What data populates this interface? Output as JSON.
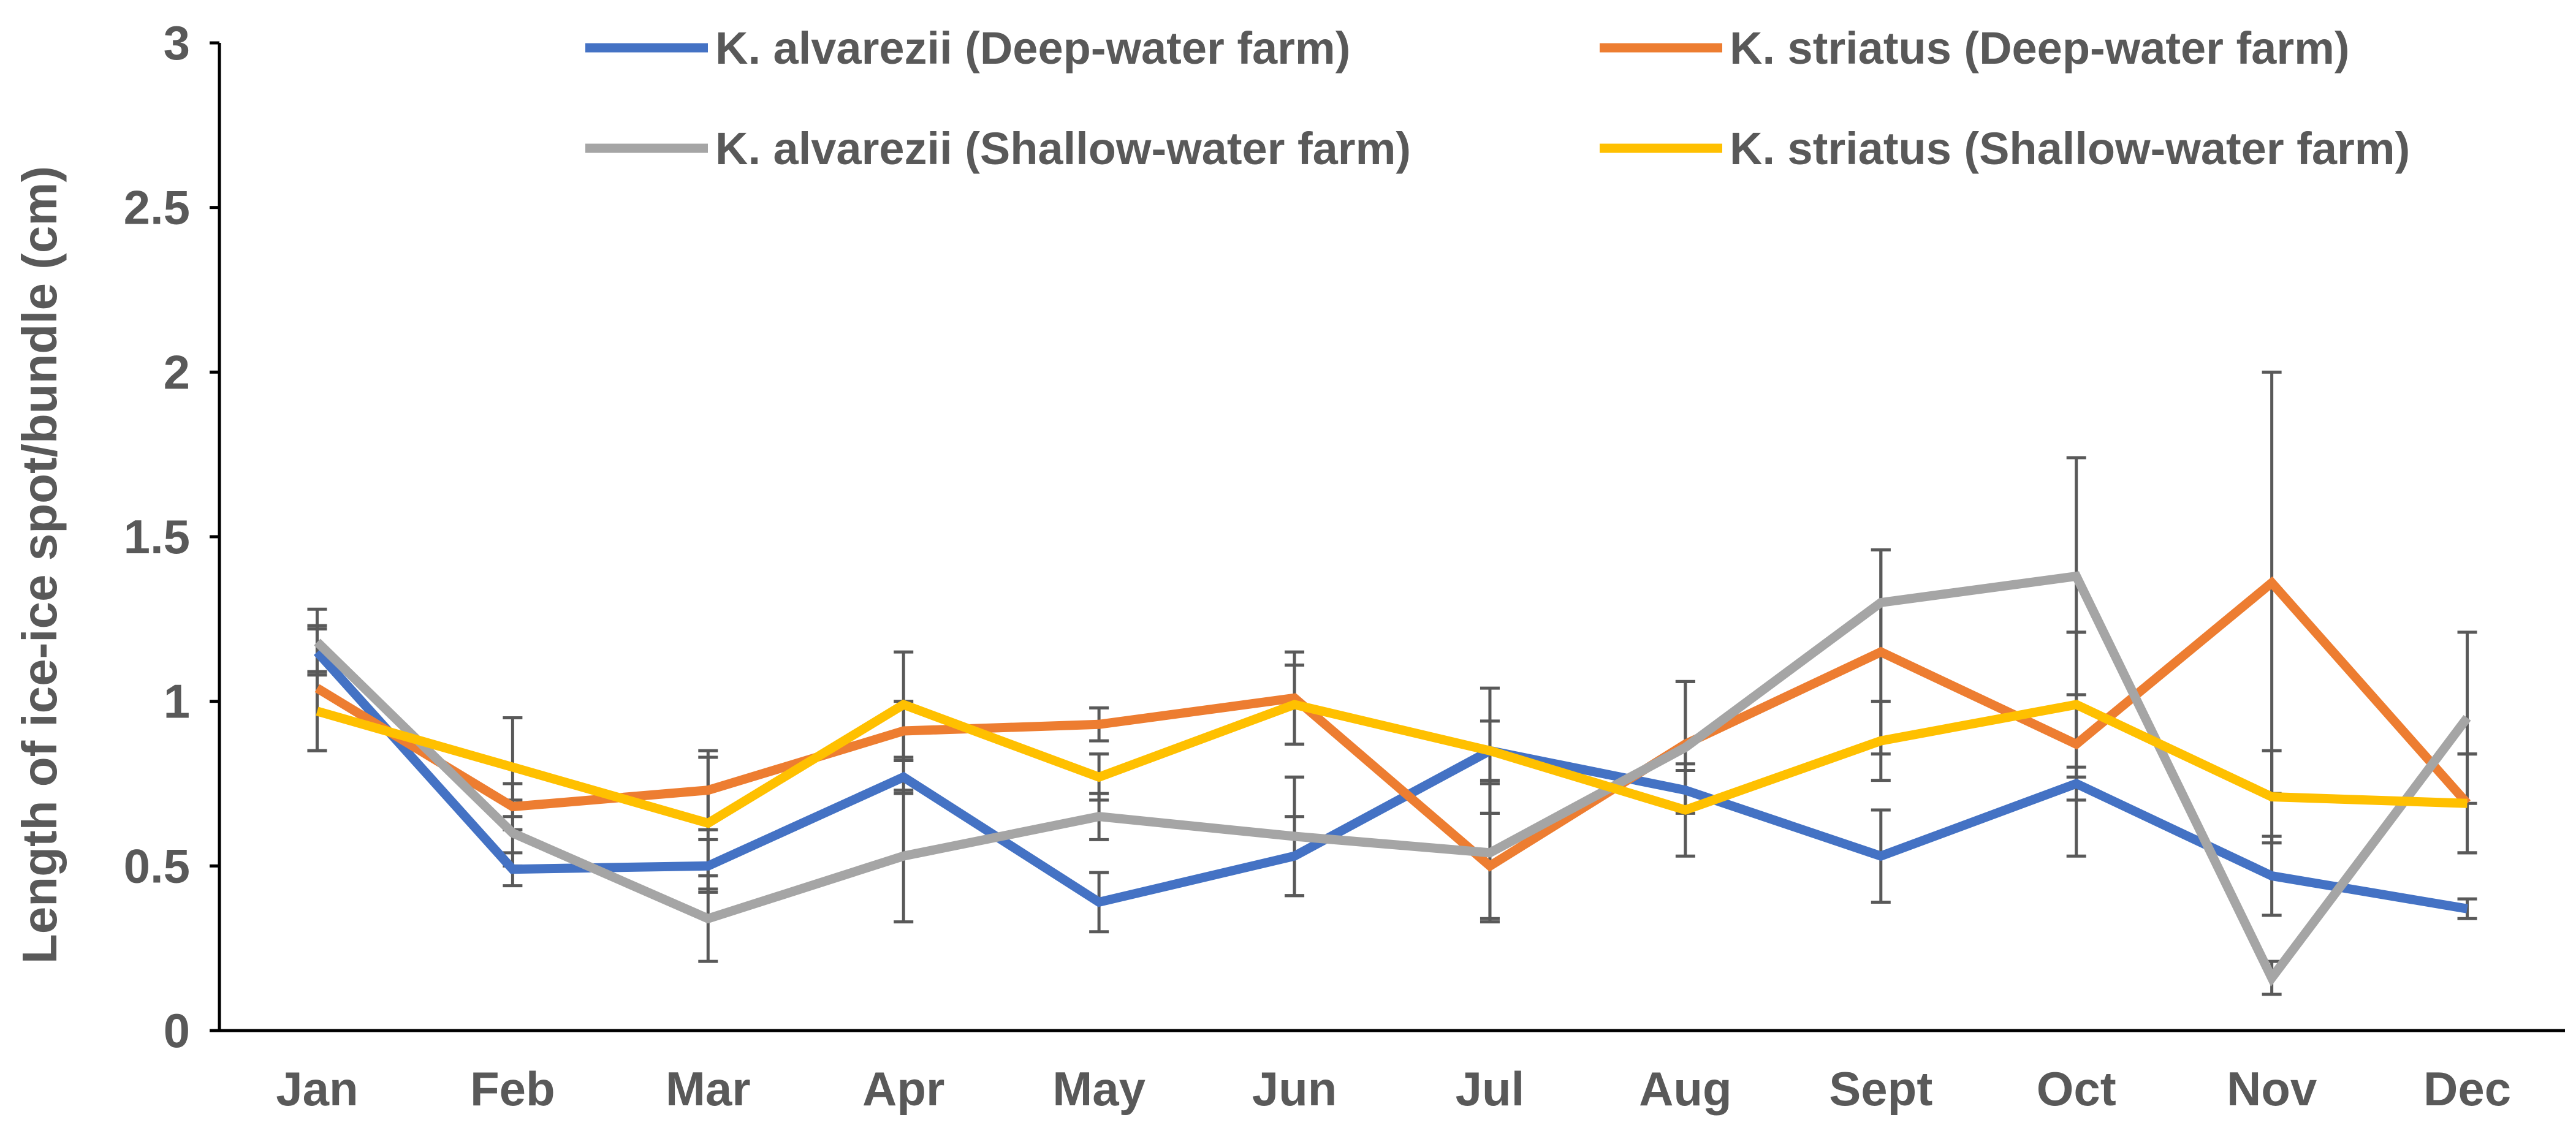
{
  "chart_data": {
    "type": "line",
    "title": "",
    "xlabel": "",
    "ylabel": "Length of ice-ice spot/bundle (cm)",
    "ylim": [
      0,
      3
    ],
    "yticks": [
      0,
      0.5,
      1,
      1.5,
      2,
      2.5,
      3
    ],
    "ytick_labels": [
      "0",
      "0.5",
      "1",
      "1.5",
      "2",
      "2.5",
      "3"
    ],
    "grid": false,
    "legend_position": "top",
    "categories": [
      "Jan",
      "Feb",
      "Mar",
      "Apr",
      "May",
      "Jun",
      "Jul",
      "Aug",
      "Sept",
      "Oct",
      "Nov",
      "Dec"
    ],
    "series": [
      {
        "name": "K. alvarezii (Deep-water farm)",
        "color": "#4472C4",
        "values": [
          1.15,
          0.49,
          0.5,
          0.77,
          0.39,
          0.53,
          0.85,
          0.73,
          0.53,
          0.75,
          0.47,
          0.37
        ],
        "errors": [
          0.07,
          0.05,
          0.08,
          0.05,
          0.09,
          0.12,
          0.09,
          0.06,
          0.14,
          0.05,
          0.12,
          0.03
        ]
      },
      {
        "name": "K. striatus (Deep-water farm)",
        "color": "#ED7D31",
        "values": [
          1.04,
          0.68,
          0.73,
          0.91,
          0.93,
          1.01,
          0.5,
          0.87,
          1.15,
          0.87,
          1.36,
          0.69
        ],
        "errors": [
          0.19,
          0.07,
          0.12,
          0.09,
          0.05,
          0.14,
          0.16,
          0.19,
          0.31,
          0.34,
          0.64,
          0.15
        ]
      },
      {
        "name": "K. alvarezii (Shallow-water farm)",
        "color": "#A5A5A5",
        "values": [
          1.18,
          0.6,
          0.34,
          0.53,
          0.65,
          0.59,
          0.54,
          0.86,
          1.3,
          1.38,
          0.16,
          0.95
        ],
        "errors": [
          0.1,
          0.1,
          0.13,
          0.2,
          0.07,
          0.18,
          0.21,
          0.2,
          0.16,
          0.36,
          0.05,
          0.26
        ]
      },
      {
        "name": "K. striatus (Shallow-water farm)",
        "color": "#FFC000",
        "values": [
          0.97,
          0.8,
          0.63,
          0.99,
          0.77,
          0.99,
          0.85,
          0.67,
          0.88,
          0.99,
          0.71,
          0.69
        ],
        "errors": [
          0.12,
          0.15,
          0.2,
          0.16,
          0.07,
          0.12,
          0.19,
          0.14,
          0.12,
          0.22,
          0.14,
          0.15
        ]
      }
    ]
  }
}
